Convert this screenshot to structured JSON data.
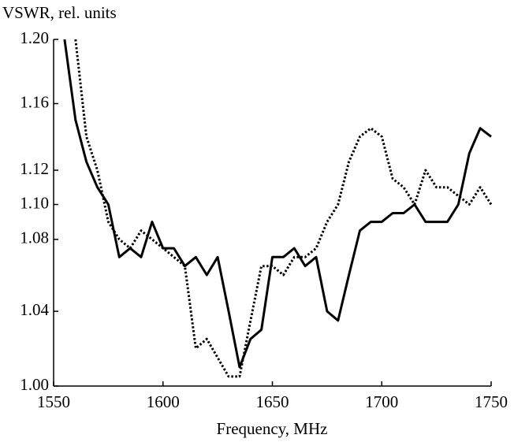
{
  "chart_data": {
    "type": "line",
    "xlabel": "Frequency, MHz",
    "ylabel": "VSWR, rel. units",
    "yscale": "reflection",
    "x": [
      1555,
      1560,
      1565,
      1570,
      1575,
      1580,
      1585,
      1590,
      1595,
      1600,
      1605,
      1610,
      1615,
      1620,
      1625,
      1630,
      1635,
      1640,
      1645,
      1650,
      1655,
      1660,
      1665,
      1670,
      1675,
      1680,
      1685,
      1690,
      1695,
      1700,
      1705,
      1710,
      1715,
      1720,
      1725,
      1730,
      1735,
      1740,
      1745,
      1750
    ],
    "series": [
      {
        "color": "#000000",
        "dash": "solid",
        "values": [
          1.2,
          1.15,
          1.125,
          1.11,
          1.1,
          1.07,
          1.075,
          1.07,
          1.09,
          1.075,
          1.075,
          1.065,
          1.07,
          1.06,
          1.07,
          1.04,
          1.01,
          1.025,
          1.03,
          1.07,
          1.07,
          1.075,
          1.065,
          1.07,
          1.04,
          1.035,
          1.06,
          1.085,
          1.09,
          1.09,
          1.095,
          1.095,
          1.1,
          1.09,
          1.09,
          1.09,
          1.1,
          1.13,
          1.145,
          1.14
        ]
      },
      {
        "color": "#000000",
        "dash": "dotted",
        "values": [
          null,
          1.2,
          1.14,
          1.12,
          1.09,
          1.08,
          1.075,
          1.085,
          1.08,
          1.075,
          1.07,
          1.065,
          1.02,
          1.025,
          1.015,
          1.005,
          1.005,
          1.035,
          1.065,
          1.065,
          1.06,
          1.07,
          1.07,
          1.075,
          1.09,
          1.1,
          1.125,
          1.14,
          1.145,
          1.14,
          1.115,
          1.11,
          1.1,
          1.12,
          1.11,
          1.11,
          1.105,
          1.1,
          1.11,
          1.1
        ]
      }
    ],
    "xlim": [
      1550,
      1750
    ],
    "xticks": [
      1550,
      1600,
      1650,
      1700,
      1750
    ],
    "ylim": [
      1.0,
      1.2
    ],
    "yticks": [
      {
        "value": 1.0,
        "label": "1.00"
      },
      1.04,
      1.08,
      {
        "value": 1.1,
        "label": "1.10"
      },
      1.12,
      1.16,
      {
        "value": 1.2,
        "label": "1.20"
      }
    ]
  }
}
